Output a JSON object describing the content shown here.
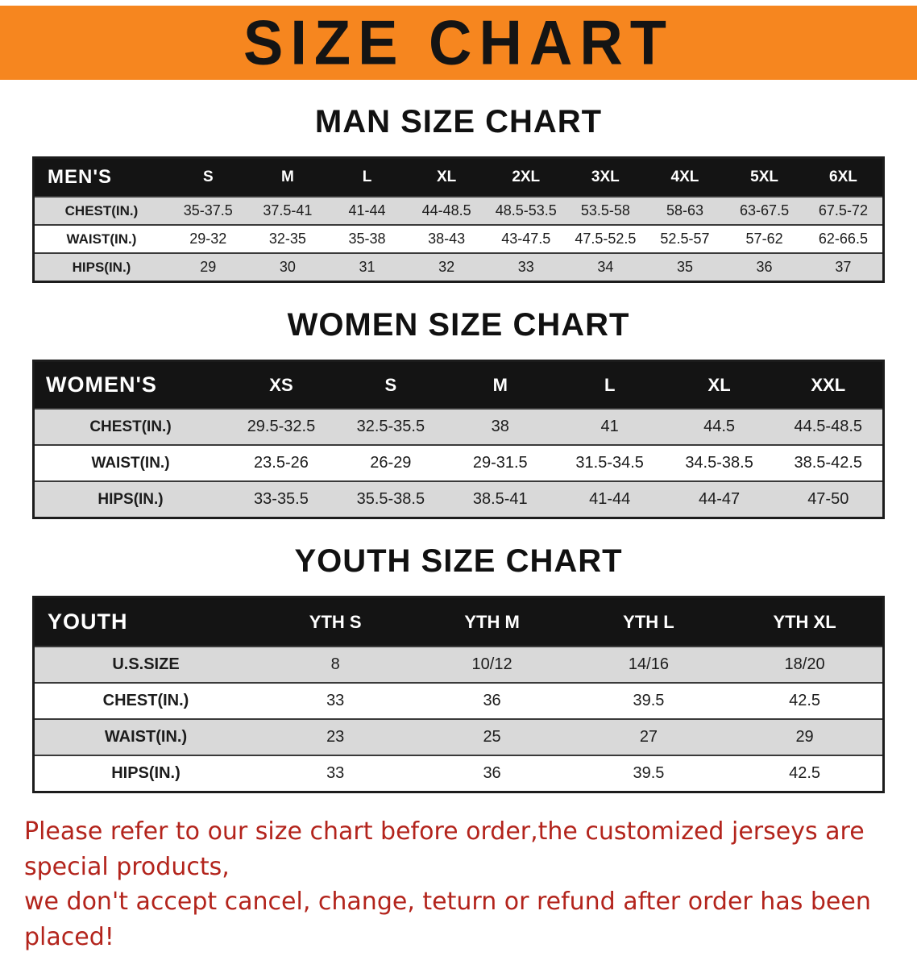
{
  "banner": {
    "title": "SIZE CHART",
    "bg_color": "#f6861f",
    "text_color": "#141414"
  },
  "sections": [
    {
      "heading": "MAN SIZE CHART",
      "table": {
        "header_label": "MEN'S",
        "columns": [
          "S",
          "M",
          "L",
          "XL",
          "2XL",
          "3XL",
          "4XL",
          "5XL",
          "6XL"
        ],
        "rows": [
          {
            "label": "CHEST(IN.)",
            "values": [
              "35-37.5",
              "37.5-41",
              "41-44",
              "44-48.5",
              "48.5-53.5",
              "53.5-58",
              "58-63",
              "63-67.5",
              "67.5-72"
            ]
          },
          {
            "label": "WAIST(IN.)",
            "values": [
              "29-32",
              "32-35",
              "35-38",
              "38-43",
              "43-47.5",
              "47.5-52.5",
              "52.5-57",
              "57-62",
              "62-66.5"
            ]
          },
          {
            "label": "HIPS(IN.)",
            "values": [
              "29",
              "30",
              "31",
              "32",
              "33",
              "34",
              "35",
              "36",
              "37"
            ]
          }
        ]
      }
    },
    {
      "heading": "WOMEN SIZE CHART",
      "table": {
        "header_label": "WOMEN'S",
        "columns": [
          "XS",
          "S",
          "M",
          "L",
          "XL",
          "XXL"
        ],
        "rows": [
          {
            "label": "CHEST(IN.)",
            "values": [
              "29.5-32.5",
              "32.5-35.5",
              "38",
              "41",
              "44.5",
              "44.5-48.5"
            ]
          },
          {
            "label": "WAIST(IN.)",
            "values": [
              "23.5-26",
              "26-29",
              "29-31.5",
              "31.5-34.5",
              "34.5-38.5",
              "38.5-42.5"
            ]
          },
          {
            "label": "HIPS(IN.)",
            "values": [
              "33-35.5",
              "35.5-38.5",
              "38.5-41",
              "41-44",
              "44-47",
              "47-50"
            ]
          }
        ]
      }
    },
    {
      "heading": "YOUTH SIZE CHART",
      "table": {
        "header_label": "YOUTH",
        "columns": [
          "YTH S",
          "YTH M",
          "YTH L",
          "YTH XL"
        ],
        "rows": [
          {
            "label": "U.S.SIZE",
            "values": [
              "8",
              "10/12",
              "14/16",
              "18/20"
            ]
          },
          {
            "label": "CHEST(IN.)",
            "values": [
              "33",
              "36",
              "39.5",
              "42.5"
            ]
          },
          {
            "label": "WAIST(IN.)",
            "values": [
              "23",
              "25",
              "27",
              "29"
            ]
          },
          {
            "label": "HIPS(IN.)",
            "values": [
              "33",
              "36",
              "39.5",
              "42.5"
            ]
          }
        ]
      }
    }
  ],
  "footer_note": {
    "line1": "Please refer to our size chart before order,the customized jerseys are special products,",
    "line2": "we don't accept cancel, change, teturn or refund after order has been placed!",
    "color": "#b3241c"
  }
}
